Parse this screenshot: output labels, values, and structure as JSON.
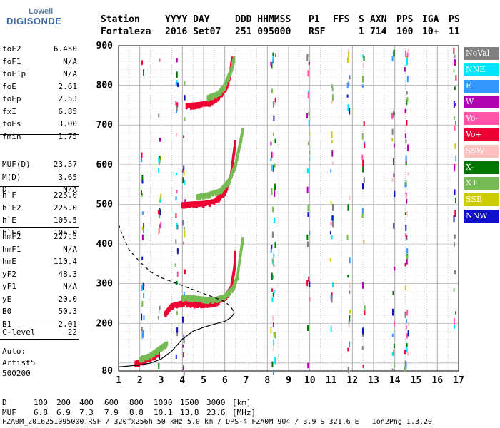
{
  "brand": {
    "line1": "Lowell",
    "line2": "DIGISONDE"
  },
  "header": {
    "labels": [
      "Station",
      "YYYY DAY",
      "DDD HHMMSS",
      "P1",
      "FFS",
      "S",
      "AXN",
      "PPS",
      "IGA",
      "PS"
    ],
    "values": [
      "Fortaleza",
      "2016 Set07",
      "251 095000",
      "RSF",
      "",
      "1",
      "714",
      "100",
      "10+",
      "11"
    ]
  },
  "params": {
    "group1": [
      {
        "name": "foF2",
        "value": "6.450"
      },
      {
        "name": "foF1",
        "value": "N/A"
      },
      {
        "name": "foF1p",
        "value": "N/A"
      },
      {
        "name": "foE",
        "value": "2.61"
      },
      {
        "name": "foEp",
        "value": "2.53"
      },
      {
        "name": "fxI",
        "value": "6.85"
      },
      {
        "name": "foEs",
        "value": "3.00"
      },
      {
        "name": "fmin",
        "value": "1.75"
      }
    ],
    "group2": [
      {
        "name": "MUF(D)",
        "value": "23.57"
      },
      {
        "name": "M(D)",
        "value": "3.65"
      },
      {
        "name": "D",
        "value": "N/A"
      }
    ],
    "group3": [
      {
        "name": "h`F",
        "value": "225.0"
      },
      {
        "name": "h`F2",
        "value": "225.0"
      },
      {
        "name": "h`E",
        "value": "105.5"
      },
      {
        "name": "h`Es",
        "value": "105.0"
      }
    ],
    "group4": [
      {
        "name": "hmF2",
        "value": "227.5"
      },
      {
        "name": "hmF1",
        "value": "N/A"
      },
      {
        "name": "hmE",
        "value": "110.4"
      },
      {
        "name": "yF2",
        "value": "48.3"
      },
      {
        "name": "yF1",
        "value": "N/A"
      },
      {
        "name": "yE",
        "value": "20.0"
      },
      {
        "name": "B0",
        "value": "50.3"
      },
      {
        "name": "B1",
        "value": "2.01"
      }
    ],
    "group5": [
      {
        "name": "C-level",
        "value": "22"
      }
    ]
  },
  "autoscale": {
    "line1": "Auto:",
    "line2": "Artist5",
    "line3": "500200"
  },
  "legend": [
    {
      "label": "NoVal",
      "bg": "#808080",
      "fg": "#ffffff"
    },
    {
      "label": "NNE",
      "bg": "#00e5ff",
      "fg": "#ffffff"
    },
    {
      "label": "E",
      "bg": "#3399ff",
      "fg": "#ffffff"
    },
    {
      "label": "W",
      "bg": "#b000b0",
      "fg": "#ffffff"
    },
    {
      "label": "Vo-",
      "bg": "#ff55aa",
      "fg": "#ffffff"
    },
    {
      "label": "Vo+",
      "bg": "#ee0033",
      "fg": "#ffffff"
    },
    {
      "label": "SSW",
      "bg": "#ffc0c0",
      "fg": "#ffffff"
    },
    {
      "label": "X-",
      "bg": "#007700",
      "fg": "#ffffff"
    },
    {
      "label": "X+",
      "bg": "#77bb55",
      "fg": "#ffffff"
    },
    {
      "label": "SSE",
      "bg": "#cccc00",
      "fg": "#ffffff"
    },
    {
      "label": "NNW",
      "bg": "#1010cc",
      "fg": "#ffffff"
    }
  ],
  "bottom": {
    "d_label": "D",
    "d_values": [
      "100",
      "200",
      "400",
      "600",
      "800",
      "1000",
      "1500",
      "3000",
      "[km]"
    ],
    "muf_label": "MUF",
    "muf_values": [
      "6.8",
      "6.9",
      "7.3",
      "7.9",
      "8.8",
      "10.1",
      "13.8",
      "23.6",
      "[MHz]"
    ],
    "footer": "FZA0M_2016251095000.RSF / 320fx256h 50 kHz 5.0 km / DPS-4 FZA0M 904 / 3.9 S 321.6 E   Ion2Png 1.3.20"
  },
  "chart_data": {
    "type": "scatter",
    "xlim": [
      1,
      17
    ],
    "ylim": [
      80,
      900
    ],
    "x_ticks": [
      1,
      2,
      3,
      4,
      5,
      6,
      7,
      8,
      9,
      10,
      11,
      12,
      13,
      14,
      15,
      16,
      17
    ],
    "y_ticks": [
      80,
      200,
      300,
      400,
      500,
      600,
      700,
      800,
      900
    ],
    "grid": true,
    "legend_position": "right",
    "traces": [
      {
        "color": "#ee0033",
        "points": [
          [
            3.2,
            225
          ],
          [
            3.5,
            245
          ],
          [
            4.0,
            252
          ],
          [
            4.5,
            250
          ],
          [
            5.0,
            250
          ],
          [
            5.5,
            252
          ],
          [
            6.0,
            265
          ],
          [
            6.3,
            290
          ],
          [
            6.45,
            340
          ],
          [
            6.5,
            380
          ]
        ]
      },
      {
        "color": "#77bb55",
        "points": [
          [
            4.0,
            265
          ],
          [
            4.5,
            265
          ],
          [
            5.0,
            262
          ],
          [
            5.5,
            260
          ],
          [
            6.0,
            268
          ],
          [
            6.4,
            290
          ],
          [
            6.6,
            320
          ],
          [
            6.75,
            380
          ],
          [
            6.85,
            415
          ]
        ]
      },
      {
        "color": "#ee0033",
        "points": [
          [
            4.0,
            500
          ],
          [
            4.5,
            502
          ],
          [
            5.0,
            503
          ],
          [
            5.5,
            508
          ],
          [
            6.0,
            530
          ],
          [
            6.3,
            575
          ],
          [
            6.4,
            620
          ],
          [
            6.5,
            660
          ]
        ]
      },
      {
        "color": "#77bb55",
        "points": [
          [
            4.7,
            520
          ],
          [
            5.2,
            525
          ],
          [
            5.8,
            535
          ],
          [
            6.2,
            560
          ],
          [
            6.5,
            600
          ],
          [
            6.7,
            650
          ],
          [
            6.85,
            690
          ]
        ]
      },
      {
        "color": "#ee0033",
        "points": [
          [
            4.2,
            750
          ],
          [
            4.7,
            752
          ],
          [
            5.2,
            756
          ],
          [
            5.6,
            768
          ],
          [
            5.9,
            785
          ],
          [
            6.1,
            800
          ],
          [
            6.25,
            830
          ],
          [
            6.35,
            870
          ]
        ]
      },
      {
        "color": "#77bb55",
        "points": [
          [
            5.2,
            770
          ],
          [
            5.7,
            780
          ],
          [
            6.0,
            800
          ],
          [
            6.3,
            840
          ],
          [
            6.45,
            870
          ]
        ]
      },
      {
        "color": "#ee0033",
        "points": [
          [
            1.8,
            100
          ],
          [
            2.1,
            105
          ],
          [
            2.4,
            112
          ],
          [
            2.7,
            120
          ],
          [
            2.9,
            130
          ]
        ]
      },
      {
        "color": "#77bb55",
        "points": [
          [
            2.0,
            110
          ],
          [
            2.5,
            120
          ],
          [
            3.0,
            140
          ],
          [
            3.3,
            150
          ]
        ]
      }
    ],
    "profile_solid": [
      [
        1,
        90
      ],
      [
        2.0,
        95
      ],
      [
        2.5,
        100
      ],
      [
        3.0,
        110
      ],
      [
        3.5,
        130
      ],
      [
        4.0,
        160
      ],
      [
        4.5,
        180
      ],
      [
        5.0,
        190
      ],
      [
        5.5,
        198
      ],
      [
        6.0,
        205
      ],
      [
        6.3,
        215
      ],
      [
        6.45,
        227
      ]
    ],
    "profile_dashed": [
      [
        1,
        450
      ],
      [
        1.2,
        420
      ],
      [
        1.5,
        385
      ],
      [
        2.0,
        355
      ],
      [
        2.5,
        330
      ],
      [
        3.0,
        315
      ],
      [
        3.5,
        305
      ],
      [
        4.0,
        295
      ],
      [
        4.5,
        285
      ],
      [
        5.0,
        275
      ],
      [
        5.5,
        265
      ],
      [
        6.0,
        255
      ],
      [
        6.3,
        240
      ],
      [
        6.45,
        227
      ]
    ]
  }
}
